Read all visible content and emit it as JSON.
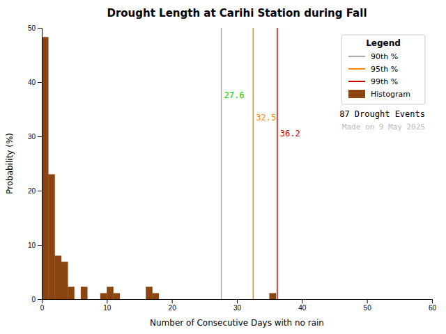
{
  "chart_data": {
    "type": "histogram",
    "title": "Drought Length at Carihi Station during Fall",
    "x_label": "Number of Consecutive Days with no rain",
    "y_label": "Probability (%)",
    "name": "Histogram",
    "color": "#8B4513",
    "bins": [
      0,
      1,
      2,
      3,
      4,
      5,
      6,
      7,
      8,
      9,
      10,
      11,
      12,
      13,
      14,
      15,
      16,
      17,
      18,
      19,
      20,
      21,
      22,
      23,
      24,
      25,
      26,
      27,
      28,
      29,
      30,
      31,
      32,
      33,
      34,
      35,
      36,
      37,
      38,
      39,
      40,
      41,
      42,
      43,
      44,
      45,
      46,
      47,
      48,
      49,
      50,
      51,
      52,
      53,
      54,
      55,
      56,
      57,
      58,
      59,
      60
    ],
    "values": [
      48.3,
      23.0,
      8.0,
      6.9,
      2.3,
      0.0,
      2.3,
      0.0,
      0.0,
      1.1,
      2.3,
      1.1,
      0.0,
      0.0,
      0.0,
      0.0,
      2.3,
      1.1,
      0.0,
      0.0,
      0.0,
      0.0,
      0.0,
      0.0,
      0.0,
      0.0,
      0.0,
      0.0,
      0.0,
      0.0,
      0.0,
      0.0,
      0.0,
      0.0,
      0.0,
      1.1,
      0.0,
      0.0,
      0.0,
      0.0,
      0.0,
      0.0,
      0.0,
      0.0,
      0.0,
      0.0,
      0.0,
      0.0,
      0.0,
      0.0,
      0.0,
      0.0,
      0.0,
      0.0,
      0.0,
      0.0,
      0.0,
      0.0,
      0.0,
      0.0
    ],
    "reference_lines": [
      {
        "name": "90th %",
        "x": 27.6,
        "color": "#aaaaaa"
      },
      {
        "name": "95th %",
        "x": 32.5,
        "color": "#ff8800"
      },
      {
        "name": "99th %",
        "x": 36.2,
        "color": "#cc0000"
      }
    ],
    "annotations": [
      {
        "text": "27.6",
        "x": 27.6,
        "y": 37.0,
        "color": "#00cc00"
      },
      {
        "text": "32.5",
        "x": 32.5,
        "y": 33.0,
        "color": "#ff8800"
      },
      {
        "text": "36.2",
        "x": 36.2,
        "y": 30.0,
        "color": "#cc0000"
      },
      {
        "text": "87   Drought Events"
      },
      {
        "text": "Made on 9 May 2025",
        "color": "#bbbbbb"
      }
    ],
    "legend": "upper right",
    "legend_title": "Legend",
    "grid": false,
    "xlim": [
      0,
      60
    ],
    "ylim": [
      0,
      50
    ],
    "xticks": [
      0,
      10,
      20,
      30,
      40,
      50,
      60
    ],
    "yticks": [
      0,
      10,
      20,
      30,
      40,
      50
    ]
  }
}
